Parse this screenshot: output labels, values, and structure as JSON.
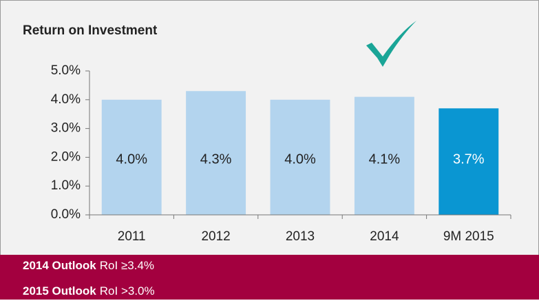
{
  "chart_data": {
    "type": "bar",
    "title": "Return on Investment",
    "categories": [
      "2011",
      "2012",
      "2013",
      "2014",
      "9M 2015"
    ],
    "values": [
      4.0,
      4.3,
      4.0,
      4.1,
      3.7
    ],
    "value_labels": [
      "4.0%",
      "4.3%",
      "4.0%",
      "4.1%",
      "3.7%"
    ],
    "colors": [
      "#b3d4ee",
      "#b3d4ee",
      "#b3d4ee",
      "#b3d4ee",
      "#0a96d2"
    ],
    "ylim": [
      0,
      5
    ],
    "yticks": [
      {
        "value": 0,
        "label": "0.0%"
      },
      {
        "value": 1,
        "label": "1.0%"
      },
      {
        "value": 2,
        "label": "2.0%"
      },
      {
        "value": 3,
        "label": "3.0%"
      },
      {
        "value": 4,
        "label": "4.0%"
      },
      {
        "value": 5,
        "label": "5.0%"
      }
    ],
    "grid": false
  },
  "outlook": [
    {
      "label": "2014 Outlook",
      "text": "RoI ≥3.4%"
    },
    {
      "label": "2015 Outlook",
      "text": "RoI >3.0%"
    }
  ]
}
